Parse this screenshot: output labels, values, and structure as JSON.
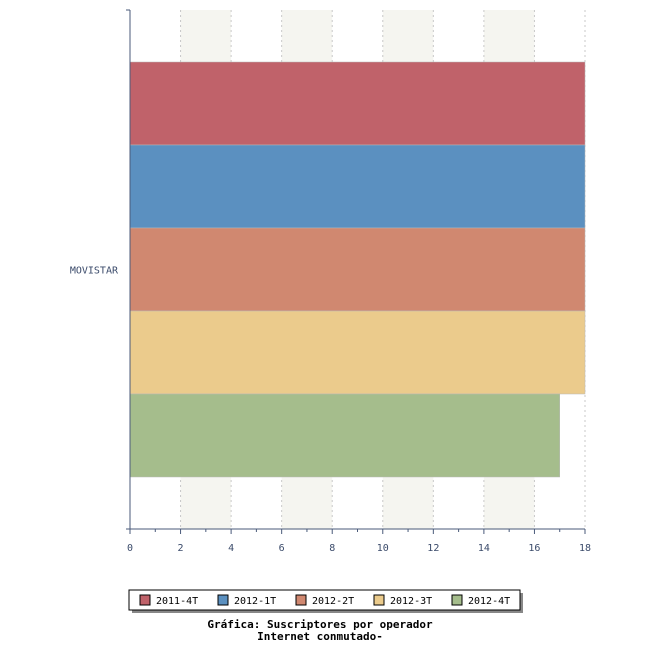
{
  "chart_data": {
    "type": "bar",
    "orientation": "horizontal",
    "categories": [
      "MOVISTAR"
    ],
    "series": [
      {
        "name": "2011-4T",
        "values": [
          18
        ],
        "color": "#c0626a"
      },
      {
        "name": "2012-1T",
        "values": [
          18
        ],
        "color": "#5b90c0"
      },
      {
        "name": "2012-2T",
        "values": [
          18
        ],
        "color": "#d08870"
      },
      {
        "name": "2012-3T",
        "values": [
          18
        ],
        "color": "#ebcb8c"
      },
      {
        "name": "2012-4T",
        "values": [
          17
        ],
        "color": "#a5bd8c"
      }
    ],
    "xticks": [
      "0",
      "2",
      "4",
      "6",
      "8",
      "10",
      "12",
      "14",
      "16",
      "18"
    ],
    "xlim": [
      0,
      18
    ],
    "grid": true,
    "legend_position": "bottom",
    "title": [
      "Gráfica: Suscriptores por operador",
      "Internet conmutado-"
    ],
    "xlabel": "",
    "ylabel": ""
  }
}
